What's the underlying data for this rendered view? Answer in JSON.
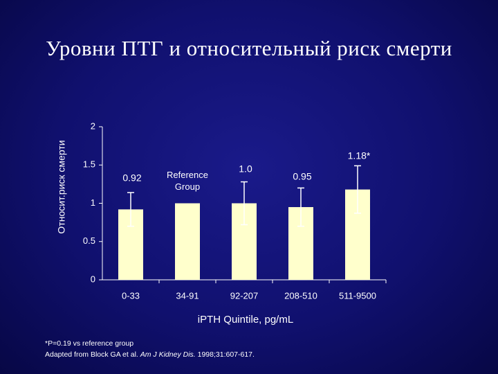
{
  "chart_data": {
    "type": "bar",
    "title": "Уровни ПТГ и относительный риск смерти",
    "ylabel": "Относит.риск смерти",
    "xlabel": "iPTH Quintile, pg/mL",
    "categories": [
      "0-33",
      "34-91",
      "92-207",
      "208-510",
      "511-9500"
    ],
    "values": [
      0.92,
      1.0,
      1.0,
      0.95,
      1.18
    ],
    "errors": [
      0.22,
      null,
      0.28,
      0.25,
      0.31
    ],
    "value_labels": [
      "0.92",
      null,
      "1.0",
      "0.95",
      "1.18*"
    ],
    "reference_label": "Reference Group",
    "color": "#ffffcc",
    "ylim": [
      0,
      2
    ],
    "yticks": [
      0,
      0.5,
      1,
      1.5,
      2
    ],
    "footnote": "*P=0.19 vs reference group",
    "source": {
      "prefix": "Adapted from Block GA et al. ",
      "journal": "Am J Kidney Dis.",
      "suffix": " 1998;31:607-617."
    }
  }
}
